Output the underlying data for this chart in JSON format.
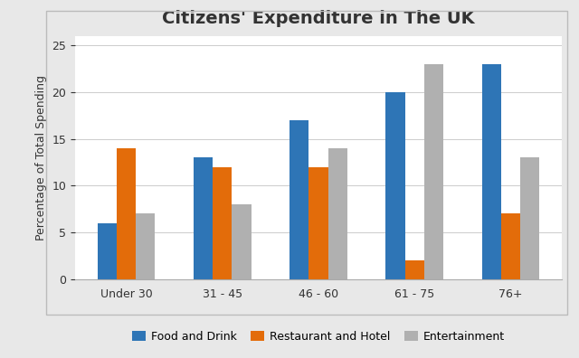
{
  "title": "Citizens' Expenditure in The UK",
  "ylabel": "Percentage of Total Spending",
  "categories": [
    "Under 30",
    "31 - 45",
    "46 - 60",
    "61 - 75",
    "76+"
  ],
  "series": [
    {
      "name": "Food and Drink",
      "color": "#2E75B6",
      "values": [
        6,
        13,
        17,
        20,
        23
      ]
    },
    {
      "name": "Restaurant and Hotel",
      "color": "#E36C0A",
      "values": [
        14,
        12,
        12,
        2,
        7
      ]
    },
    {
      "name": "Entertainment",
      "color": "#B0B0B0",
      "values": [
        7,
        8,
        14,
        23,
        13
      ]
    }
  ],
  "ylim": [
    0,
    26
  ],
  "yticks": [
    0,
    5,
    10,
    15,
    20,
    25
  ],
  "bar_width": 0.2,
  "outer_background": "#E8E8E8",
  "inner_background": "#FFFFFF",
  "border_color": "#CCCCCC",
  "grid_color": "#CCCCCC",
  "title_fontsize": 14,
  "axis_label_fontsize": 9,
  "tick_fontsize": 9,
  "legend_fontsize": 9
}
